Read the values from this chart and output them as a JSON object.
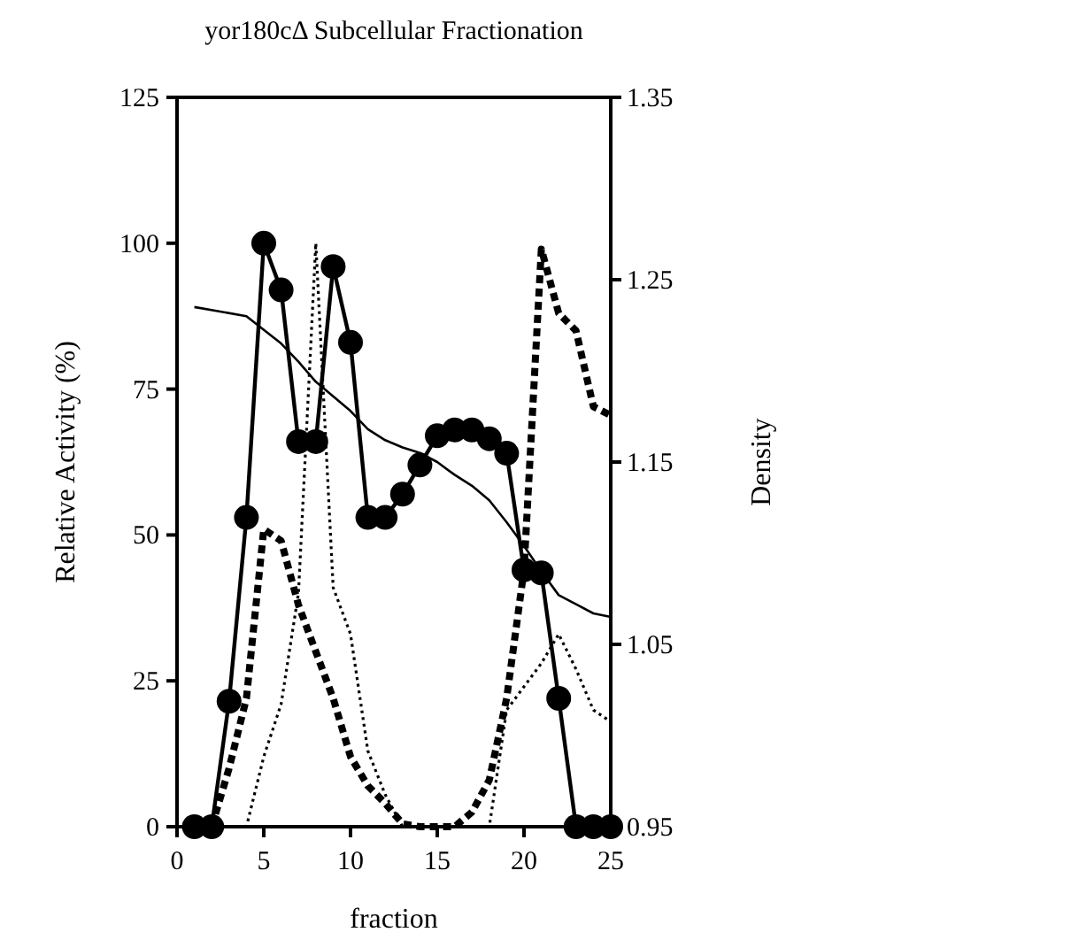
{
  "chart_data": {
    "type": "line",
    "title": "yor180cΔ Subcellular Fractionation",
    "xlabel": "fraction",
    "ylabel": "Relative Activity (%)",
    "y2label": "Density",
    "xlim": [
      0,
      25
    ],
    "xticks": [
      0,
      5,
      10,
      15,
      20,
      25
    ],
    "ylim": [
      0,
      125
    ],
    "yticks": [
      0,
      25,
      50,
      75,
      100,
      125
    ],
    "y2lim": [
      0.95,
      1.35
    ],
    "y2ticks": [
      0.95,
      1.05,
      1.15,
      1.25,
      1.35
    ],
    "grid": false,
    "series": [
      {
        "color": "#000000",
        "marker": "circle",
        "line_style": "solid",
        "x": [
          1,
          2,
          3,
          4,
          5,
          6,
          7,
          8,
          9,
          10,
          11,
          12,
          13,
          14,
          15,
          16,
          17,
          18,
          19,
          20,
          21,
          22,
          23,
          24,
          25
        ],
        "values": [
          0,
          0,
          21.5,
          53,
          100,
          92,
          66,
          66,
          96,
          83,
          53,
          53,
          57,
          62,
          67,
          68,
          68,
          66.5,
          64,
          44,
          43.5,
          22,
          0,
          0,
          0
        ]
      },
      {
        "color": "#000000",
        "marker": "none",
        "line_style": "solid",
        "axis": "y2",
        "x": [
          1,
          4,
          6,
          7,
          8,
          9,
          10,
          11,
          12,
          13,
          14,
          15,
          16,
          17,
          18,
          19,
          20,
          21,
          22,
          23,
          24,
          25
        ],
        "values": [
          1.235,
          1.23,
          1.215,
          1.205,
          1.194,
          1.186,
          1.178,
          1.168,
          1.162,
          1.158,
          1.155,
          1.15,
          1.143,
          1.137,
          1.129,
          1.117,
          1.104,
          1.09,
          1.077,
          1.072,
          1.067,
          1.065
        ]
      },
      {
        "color": "#000000",
        "marker": "none",
        "line_style": "dashed",
        "x": [
          2,
          3,
          4,
          5,
          6,
          7,
          8,
          9,
          10,
          11,
          12,
          13,
          14,
          15,
          16,
          17,
          18,
          19,
          20,
          21,
          22,
          23,
          24,
          25
        ],
        "values": [
          0,
          10,
          22,
          51,
          49,
          38,
          30,
          22,
          12,
          7,
          4,
          0.5,
          0,
          0,
          0,
          2.5,
          8,
          22,
          44,
          99,
          88,
          85,
          72,
          70.5
        ]
      },
      {
        "color": "#000000",
        "marker": "none",
        "line_style": "dotted",
        "x": [
          2,
          3,
          4,
          5,
          6,
          7,
          8,
          9,
          10,
          11,
          12,
          13,
          14,
          15,
          16,
          17,
          18,
          19,
          20,
          21,
          22,
          23,
          24,
          25
        ],
        "values": [
          0,
          0,
          0,
          12,
          21,
          40,
          100,
          41,
          33,
          13,
          5.5,
          0,
          0,
          0,
          0,
          0,
          0,
          20,
          24,
          28,
          33,
          27,
          20,
          18
        ]
      }
    ]
  }
}
